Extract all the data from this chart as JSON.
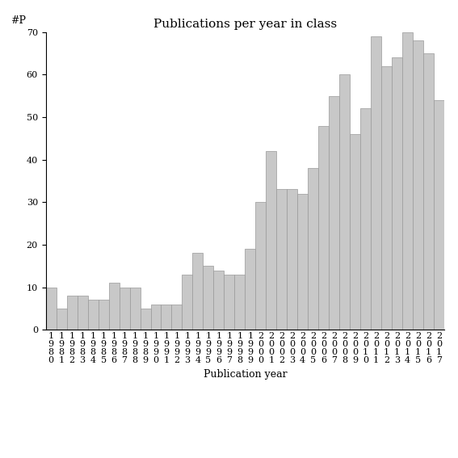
{
  "title": "Publications per year in class",
  "xlabel": "Publication year",
  "ylabel": "#P",
  "years": [
    "1980",
    "1981",
    "1982",
    "1983",
    "1984",
    "1985",
    "1986",
    "1987",
    "1988",
    "1989",
    "1990",
    "1991",
    "1992",
    "1993",
    "1994",
    "1995",
    "1996",
    "1997",
    "1998",
    "1999",
    "2000",
    "2001",
    "2002",
    "2003",
    "2004",
    "2005",
    "2006",
    "2007",
    "2008",
    "2009",
    "2010",
    "2011",
    "2012",
    "2013",
    "2014",
    "2015",
    "2016",
    "2017"
  ],
  "values": [
    10,
    5,
    8,
    8,
    7,
    7,
    11,
    10,
    10,
    5,
    6,
    6,
    6,
    13,
    18,
    15,
    14,
    13,
    13,
    19,
    30,
    42,
    33,
    33,
    32,
    38,
    48,
    55,
    60,
    46,
    52,
    69,
    62,
    64,
    70,
    68,
    65,
    54
  ],
  "bar_color": "#c8c8c8",
  "bar_edgecolor": "#999999",
  "bg_color": "#ffffff",
  "ylim": [
    0,
    70
  ],
  "yticks": [
    0,
    10,
    20,
    30,
    40,
    50,
    60,
    70
  ],
  "title_fontsize": 11,
  "axis_fontsize": 9,
  "tick_fontsize": 8,
  "ylabel_fontsize": 9
}
